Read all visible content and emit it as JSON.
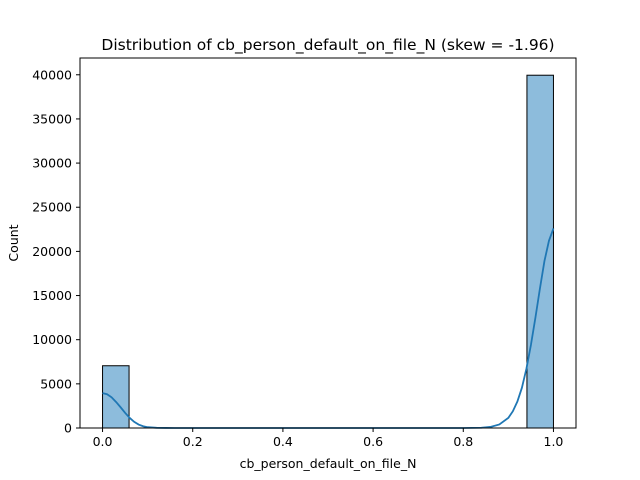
{
  "chart_data": {
    "type": "bar",
    "title": "Distribution of cb_person_default_on_file_N (skew = -1.96)",
    "xlabel": "cb_person_default_on_file_N",
    "ylabel": "Count",
    "xlim": [
      -0.05,
      1.05
    ],
    "ylim": [
      0,
      41900
    ],
    "x_ticks": [
      "0.0",
      "0.2",
      "0.4",
      "0.6",
      "0.8",
      "1.0"
    ],
    "y_ticks": [
      "0",
      "5000",
      "10000",
      "15000",
      "20000",
      "25000",
      "30000",
      "35000",
      "40000"
    ],
    "grid": false,
    "bins": [
      {
        "x0": 0.0,
        "x1": 0.0588,
        "count": 7050
      },
      {
        "x0": 0.9412,
        "x1": 1.0,
        "count": 39950
      }
    ],
    "kde": {
      "name": "kde",
      "x": [
        0.0,
        0.01,
        0.02,
        0.03,
        0.04,
        0.05,
        0.06,
        0.07,
        0.08,
        0.09,
        0.1,
        0.12,
        0.14,
        0.16,
        0.2,
        0.5,
        0.8,
        0.84,
        0.86,
        0.88,
        0.9,
        0.91,
        0.92,
        0.93,
        0.94,
        0.95,
        0.96,
        0.97,
        0.98,
        0.99,
        1.0
      ],
      "y": [
        3950,
        3820,
        3480,
        2950,
        2350,
        1720,
        1150,
        700,
        390,
        200,
        90,
        20,
        5,
        0,
        0,
        0,
        0,
        30,
        120,
        400,
        1150,
        1900,
        3000,
        4550,
        6700,
        9400,
        12500,
        15800,
        18900,
        21200,
        22600
      ]
    },
    "colors": {
      "bar_fill": "#8dbcdc",
      "bar_edge": "#000000",
      "kde_line": "#1f77b4"
    }
  }
}
